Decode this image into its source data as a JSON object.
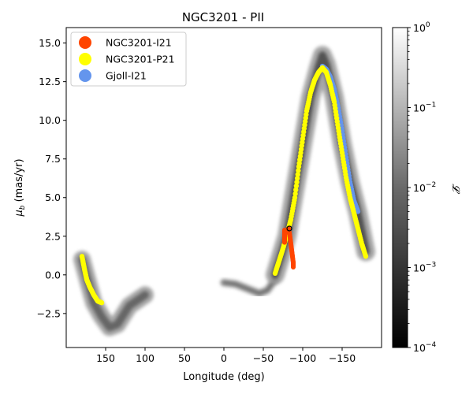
{
  "chart_data": {
    "type": "scatter",
    "title": "NGC3201 - PII",
    "xlabel": "Longitude (deg)",
    "ylabel_main": "μ",
    "ylabel_sub": "b",
    "ylabel_rest": " (mas/yr)",
    "xlim": [
      200,
      -200
    ],
    "ylim": [
      -4.7,
      16
    ],
    "x_ticks": [
      150,
      100,
      50,
      0,
      -50,
      -100,
      -150
    ],
    "x_tick_labels": [
      "150",
      "100",
      "50",
      "0",
      "−50",
      "−100",
      "−150"
    ],
    "y_ticks": [
      -2.5,
      0.0,
      2.5,
      5.0,
      7.5,
      10.0,
      12.5,
      15.0
    ],
    "y_tick_labels": [
      "−2.5",
      "0.0",
      "2.5",
      "5.0",
      "7.5",
      "10.0",
      "12.5",
      "15.0"
    ],
    "legend": {
      "placement": "top-left",
      "entries": [
        {
          "label": "NGC3201-I21",
          "color": "#ff4500"
        },
        {
          "label": "NGC3201-P21",
          "color": "#ffff00"
        },
        {
          "label": "Gjoll-I21",
          "color": "#6495ed"
        }
      ]
    },
    "colorbar": {
      "label": "𝓛",
      "scale": "log",
      "range": [
        0.0001,
        1
      ],
      "ticks": [
        {
          "base": "10",
          "exp": "0",
          "value": 1
        },
        {
          "base": "10",
          "exp": "−1",
          "value": 0.1
        },
        {
          "base": "10",
          "exp": "−2",
          "value": 0.01
        },
        {
          "base": "10",
          "exp": "−3",
          "value": 0.001
        },
        {
          "base": "10",
          "exp": "−4",
          "value": 0.0001
        }
      ],
      "cmap": "gray (black → white)"
    },
    "series": [
      {
        "name": "Gjoll-I21",
        "color": "#6495ed",
        "points": [
          [
            -125,
            13.5
          ],
          [
            -130,
            13.3
          ],
          [
            -135,
            12.8
          ],
          [
            -140,
            12.0
          ],
          [
            -145,
            10.8
          ],
          [
            -150,
            9.3
          ],
          [
            -155,
            7.6
          ],
          [
            -160,
            6.0
          ],
          [
            -165,
            4.8
          ],
          [
            -170,
            4.1
          ]
        ]
      },
      {
        "name": "NGC3201-P21",
        "color": "#ffff00",
        "points_right": [
          [
            -65,
            0.1
          ],
          [
            -70,
            0.9
          ],
          [
            -75,
            1.7
          ],
          [
            -80,
            2.6
          ],
          [
            -85,
            3.6
          ],
          [
            -90,
            5.0
          ],
          [
            -95,
            7.0
          ],
          [
            -100,
            8.8
          ],
          [
            -105,
            10.6
          ],
          [
            -110,
            11.8
          ],
          [
            -115,
            12.6
          ],
          [
            -120,
            13.1
          ],
          [
            -125,
            13.4
          ],
          [
            -130,
            13.1
          ],
          [
            -135,
            12.3
          ],
          [
            -140,
            11.2
          ],
          [
            -145,
            9.5
          ],
          [
            -150,
            7.9
          ],
          [
            -155,
            6.3
          ],
          [
            -160,
            5.0
          ],
          [
            -165,
            4.0
          ],
          [
            -170,
            3.0
          ],
          [
            -175,
            2.0
          ],
          [
            -180,
            1.2
          ]
        ],
        "points_left": [
          [
            180,
            1.2
          ],
          [
            177,
            0.4
          ],
          [
            174,
            -0.3
          ],
          [
            170,
            -0.8
          ],
          [
            165,
            -1.3
          ],
          [
            160,
            -1.7
          ],
          [
            155,
            -1.8
          ]
        ]
      },
      {
        "name": "NGC3201-I21",
        "color": "#ff4500",
        "points": [
          [
            -82,
            3.0
          ],
          [
            -83,
            2.7
          ],
          [
            -84,
            2.4
          ],
          [
            -85,
            2.0
          ],
          [
            -86,
            1.6
          ],
          [
            -87,
            1.2
          ],
          [
            -88,
            0.8
          ],
          [
            -88,
            0.5
          ]
        ],
        "points_left_branch": [
          [
            -77,
            2.9
          ],
          [
            -77,
            2.5
          ],
          [
            -77,
            2.1
          ]
        ]
      }
    ],
    "density_envelope": {
      "left_lobe": [
        [
          180,
          1.0
        ],
        [
          165,
          -1.8
        ],
        [
          155,
          -2.7
        ],
        [
          145,
          -3.4
        ],
        [
          135,
          -3.2
        ],
        [
          120,
          -2.0
        ],
        [
          100,
          -1.3
        ]
      ],
      "center": [
        [
          0,
          -0.5
        ],
        [
          -15,
          -0.6
        ],
        [
          -30,
          -0.9
        ],
        [
          -45,
          -1.2
        ],
        [
          -55,
          -1.0
        ],
        [
          -65,
          -0.3
        ]
      ],
      "main_arc": [
        [
          -65,
          0.0
        ],
        [
          -80,
          2.5
        ],
        [
          -95,
          7.0
        ],
        [
          -110,
          11.5
        ],
        [
          -120,
          13.4
        ],
        [
          -125,
          14.2
        ],
        [
          -130,
          13.6
        ],
        [
          -140,
          11.5
        ],
        [
          -150,
          8.5
        ],
        [
          -160,
          6.0
        ],
        [
          -170,
          4.0
        ],
        [
          -180,
          1.5
        ]
      ]
    },
    "highlight_point": {
      "x": -83,
      "y": 3.0
    }
  }
}
